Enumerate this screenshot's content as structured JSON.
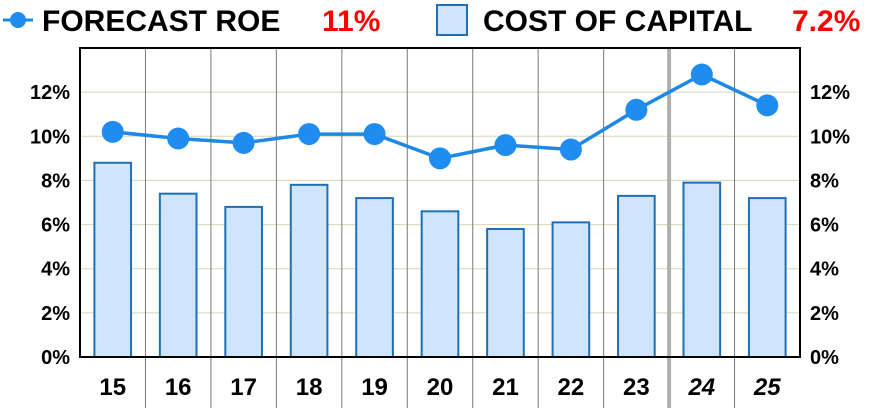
{
  "chart_data": {
    "type": "bar",
    "categories": [
      "15",
      "16",
      "17",
      "18",
      "19",
      "20",
      "21",
      "22",
      "23",
      "24",
      "25"
    ],
    "forecast_categories": [
      "24",
      "25"
    ],
    "series": [
      {
        "name": "FORECAST ROE",
        "type": "line",
        "values": [
          10.2,
          9.9,
          9.7,
          10.1,
          10.1,
          9.0,
          9.6,
          9.4,
          11.2,
          12.8,
          11.4
        ]
      },
      {
        "name": "COST OF CAPITAL",
        "type": "bar",
        "values": [
          8.8,
          7.4,
          6.8,
          7.8,
          7.2,
          6.6,
          5.8,
          6.1,
          7.3,
          7.9,
          7.2
        ]
      }
    ],
    "legend": {
      "roe_label": "FORECAST ROE",
      "roe_value": "11%",
      "coc_label": "COST OF CAPITAL",
      "coc_value": "7.2%"
    },
    "y_ticks": [
      "0%",
      "2%",
      "4%",
      "6%",
      "8%",
      "10%",
      "12%"
    ],
    "ylim": [
      0,
      14
    ],
    "grid": true,
    "legend_placement": "top",
    "colors": {
      "line": "#1e88e5",
      "marker": "#1e8cf0",
      "bar_fill": "#cfe5fb",
      "bar_edge": "#1f6fb5",
      "grid_vertical": "#7a7a7a",
      "grid_horizontal": "#d6d6b0",
      "legend_value": "#ff0000"
    }
  }
}
